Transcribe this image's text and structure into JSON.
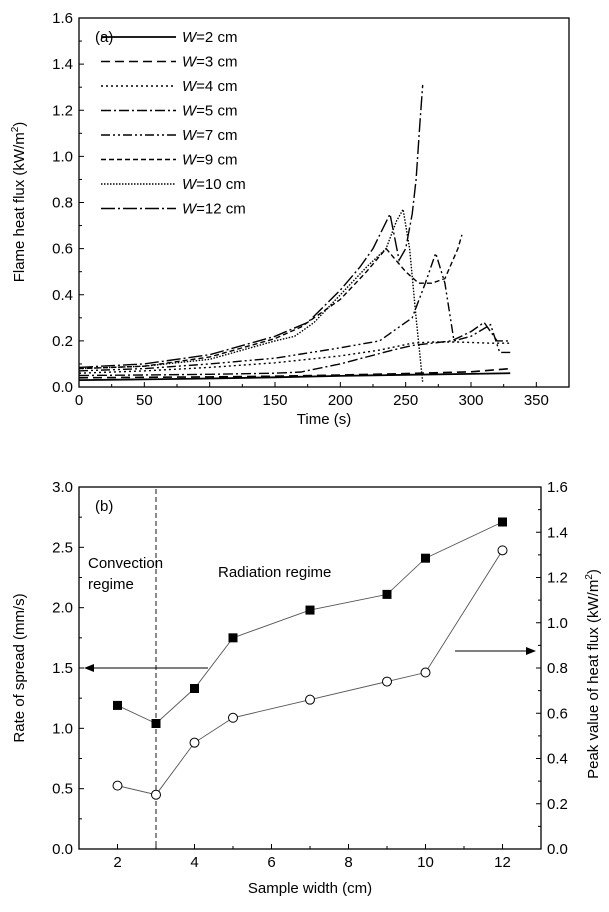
{
  "chart_data": [
    {
      "type": "line",
      "panel_label": "(a)",
      "xlabel": "Time (s)",
      "ylabel_prefix": "Flame heat flux (kW/m",
      "ylabel_sup": "2",
      "ylabel_suffix": ")",
      "xlim": [
        0,
        375
      ],
      "ylim": [
        0,
        1.6
      ],
      "xticks": [
        "0",
        "50",
        "100",
        "150",
        "200",
        "250",
        "300",
        "350"
      ],
      "yticks": [
        "0.0",
        "0.2",
        "0.4",
        "0.6",
        "0.8",
        "1.0",
        "1.2",
        "1.4",
        "1.6"
      ],
      "legend": "upper-left",
      "series": [
        {
          "name_var": "W",
          "name_val": "=2 cm",
          "dash": "solid",
          "width": 1.8,
          "points": [
            [
              0,
              0.03
            ],
            [
              50,
              0.033
            ],
            [
              100,
              0.037
            ],
            [
              150,
              0.042
            ],
            [
              200,
              0.048
            ],
            [
              250,
              0.053
            ],
            [
              300,
              0.057
            ],
            [
              330,
              0.06
            ]
          ]
        },
        {
          "name_var": "W",
          "name_val": "=3 cm",
          "dash": "dash",
          "width": 1.6,
          "points": [
            [
              0,
              0.04
            ],
            [
              50,
              0.042
            ],
            [
              100,
              0.044
            ],
            [
              150,
              0.047
            ],
            [
              200,
              0.052
            ],
            [
              250,
              0.058
            ],
            [
              300,
              0.066
            ],
            [
              330,
              0.08
            ]
          ]
        },
        {
          "name_var": "W",
          "name_val": "=4 cm",
          "dash": "dot",
          "width": 1.4,
          "points": [
            [
              0,
              0.06
            ],
            [
              50,
              0.07
            ],
            [
              100,
              0.085
            ],
            [
              150,
              0.105
            ],
            [
              200,
              0.135
            ],
            [
              230,
              0.16
            ],
            [
              255,
              0.19
            ],
            [
              270,
              0.195
            ],
            [
              290,
              0.195
            ],
            [
              315,
              0.19
            ],
            [
              330,
              0.19
            ]
          ]
        },
        {
          "name_var": "W",
          "name_val": "=5 cm",
          "dash": "dashdot",
          "width": 1.4,
          "points": [
            [
              0,
              0.05
            ],
            [
              50,
              0.052
            ],
            [
              100,
              0.055
            ],
            [
              150,
              0.06
            ],
            [
              170,
              0.065
            ],
            [
              200,
              0.1
            ],
            [
              220,
              0.13
            ],
            [
              240,
              0.16
            ],
            [
              255,
              0.18
            ],
            [
              270,
              0.19
            ],
            [
              285,
              0.2
            ],
            [
              300,
              0.24
            ],
            [
              310,
              0.28
            ],
            [
              320,
              0.2
            ],
            [
              330,
              0.2
            ]
          ]
        },
        {
          "name_var": "W",
          "name_val": "=7 cm",
          "dash": "dashdotdot",
          "width": 1.4,
          "points": [
            [
              0,
              0.07
            ],
            [
              50,
              0.08
            ],
            [
              100,
              0.1
            ],
            [
              150,
              0.125
            ],
            [
              200,
              0.17
            ],
            [
              230,
              0.2
            ],
            [
              255,
              0.3
            ],
            [
              265,
              0.45
            ],
            [
              273,
              0.58
            ],
            [
              280,
              0.45
            ],
            [
              287,
              0.2
            ],
            [
              300,
              0.22
            ],
            [
              315,
              0.27
            ],
            [
              322,
              0.15
            ],
            [
              330,
              0.15
            ]
          ]
        },
        {
          "name_var": "W",
          "name_val": "=9 cm",
          "dash": "shortdash",
          "width": 1.4,
          "points": [
            [
              0,
              0.08
            ],
            [
              50,
              0.09
            ],
            [
              100,
              0.13
            ],
            [
              150,
              0.21
            ],
            [
              170,
              0.26
            ],
            [
              200,
              0.38
            ],
            [
              220,
              0.5
            ],
            [
              235,
              0.6
            ],
            [
              250,
              0.5
            ],
            [
              260,
              0.45
            ],
            [
              270,
              0.45
            ],
            [
              280,
              0.47
            ],
            [
              290,
              0.6
            ],
            [
              293,
              0.66
            ]
          ]
        },
        {
          "name_var": "W",
          "name_val": "=10 cm",
          "dash": "densedot",
          "width": 1.4,
          "points": [
            [
              0,
              0.08
            ],
            [
              50,
              0.09
            ],
            [
              100,
              0.12
            ],
            [
              150,
              0.2
            ],
            [
              165,
              0.22
            ],
            [
              180,
              0.28
            ],
            [
              200,
              0.4
            ],
            [
              220,
              0.52
            ],
            [
              235,
              0.6
            ],
            [
              243,
              0.72
            ],
            [
              248,
              0.77
            ],
            [
              253,
              0.6
            ],
            [
              258,
              0.3
            ],
            [
              263,
              0.02
            ]
          ]
        },
        {
          "name_var": "W",
          "name_val": "=12 cm",
          "dash": "longdashdot",
          "width": 1.4,
          "points": [
            [
              0,
              0.085
            ],
            [
              50,
              0.1
            ],
            [
              100,
              0.14
            ],
            [
              150,
              0.22
            ],
            [
              175,
              0.28
            ],
            [
              200,
              0.42
            ],
            [
              215,
              0.52
            ],
            [
              225,
              0.6
            ],
            [
              238,
              0.75
            ],
            [
              245,
              0.55
            ],
            [
              250,
              0.6
            ],
            [
              255,
              0.75
            ],
            [
              258,
              0.9
            ],
            [
              261,
              1.15
            ],
            [
              263,
              1.31
            ]
          ]
        }
      ]
    },
    {
      "type": "scatter",
      "panel_label": "(b)",
      "xlabel": "Sample width (cm)",
      "ylabel_left": "Rate of spread (mm/s)",
      "ylabel_right_prefix": "Peak value of  heat flux (kW/m",
      "ylabel_right_sup": "2",
      "ylabel_right_suffix": ")",
      "xlim": [
        1,
        13
      ],
      "ylim_left": [
        0,
        3.0
      ],
      "ylim_right": [
        0,
        1.6
      ],
      "xticks": [
        "2",
        "4",
        "6",
        "8",
        "10",
        "12"
      ],
      "xtick_values": [
        2,
        4,
        6,
        8,
        10,
        12
      ],
      "yticks_left": [
        "0.0",
        "0.5",
        "1.0",
        "1.5",
        "2.0",
        "2.5",
        "3.0"
      ],
      "yticks_right": [
        "0.0",
        "0.2",
        "0.4",
        "0.6",
        "0.8",
        "1.0",
        "1.2",
        "1.4",
        "1.6"
      ],
      "divider_x": 3,
      "regime_left_line1": "Convection",
      "regime_left_line2": "regime",
      "regime_right": "Radiation regime",
      "rate_of_spread": {
        "axis": "left",
        "marker": "filled-square",
        "x": [
          2,
          3,
          4,
          5,
          7,
          9,
          10,
          12
        ],
        "y": [
          1.19,
          1.04,
          1.33,
          1.75,
          1.98,
          2.11,
          2.41,
          2.71
        ]
      },
      "peak_heat_flux": {
        "axis": "right",
        "marker": "open-circle",
        "x": [
          2,
          3,
          4,
          5,
          7,
          9,
          10,
          12
        ],
        "y": [
          0.28,
          0.24,
          0.47,
          0.58,
          0.66,
          0.74,
          0.78,
          1.32
        ]
      }
    }
  ]
}
